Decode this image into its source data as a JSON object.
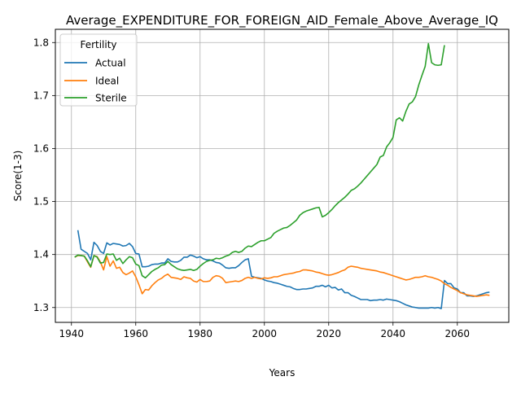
{
  "chart_data": {
    "type": "line",
    "title": "Average_EXPENDITURE_FOR_FOREIGN_AID_Female_Above_Average_IQ",
    "xlabel": "Years",
    "ylabel": "Score(1-3)",
    "xlim": [
      1935,
      2076
    ],
    "ylim": [
      1.272,
      1.825
    ],
    "x_ticks": [
      1940,
      1960,
      1980,
      2000,
      2020,
      2040,
      2060
    ],
    "y_ticks": [
      1.3,
      1.4,
      1.5,
      1.6,
      1.7,
      1.8
    ],
    "grid": true,
    "legend": {
      "title": "Fertility",
      "position": "upper-left"
    },
    "series": [
      {
        "name": "Actual",
        "color": "#1f77b4",
        "x": [
          1942,
          1943,
          1944,
          1945,
          1946,
          1947,
          1948,
          1949,
          1950,
          1951,
          1952,
          1953,
          1954,
          1955,
          1956,
          1957,
          1958,
          1959,
          1960,
          1961,
          1962,
          1963,
          1964,
          1965,
          1966,
          1967,
          1968,
          1969,
          1970,
          1971,
          1972,
          1973,
          1974,
          1975,
          1976,
          1977,
          1978,
          1979,
          1980,
          1981,
          1982,
          1983,
          1984,
          1985,
          1986,
          1987,
          1988,
          1989,
          1990,
          1991,
          1992,
          1993,
          1994,
          1995,
          1996,
          1997,
          1998,
          1999,
          2000,
          2001,
          2002,
          2003,
          2004,
          2005,
          2006,
          2007,
          2008,
          2009,
          2010,
          2011,
          2012,
          2013,
          2014,
          2015,
          2016,
          2017,
          2018,
          2019,
          2020,
          2021,
          2022,
          2023,
          2024,
          2025,
          2026,
          2027,
          2028,
          2029,
          2030,
          2031,
          2032,
          2033,
          2034,
          2035,
          2036,
          2037,
          2038,
          2039,
          2040,
          2041,
          2042,
          2043,
          2044,
          2045,
          2046,
          2047,
          2048,
          2049,
          2050,
          2051,
          2052,
          2053,
          2054,
          2055,
          2056,
          2057,
          2058,
          2059,
          2060,
          2061,
          2062,
          2063,
          2064,
          2065,
          2066,
          2067,
          2068,
          2069,
          2070
        ],
        "values": [
          1.446,
          1.41,
          1.406,
          1.402,
          1.39,
          1.423,
          1.417,
          1.406,
          1.402,
          1.422,
          1.418,
          1.421,
          1.42,
          1.419,
          1.416,
          1.417,
          1.421,
          1.415,
          1.402,
          1.401,
          1.377,
          1.377,
          1.378,
          1.381,
          1.382,
          1.382,
          1.384,
          1.384,
          1.392,
          1.387,
          1.386,
          1.386,
          1.389,
          1.395,
          1.395,
          1.399,
          1.397,
          1.394,
          1.396,
          1.392,
          1.39,
          1.39,
          1.388,
          1.385,
          1.384,
          1.38,
          1.375,
          1.374,
          1.375,
          1.375,
          1.379,
          1.385,
          1.39,
          1.392,
          1.359,
          1.357,
          1.356,
          1.355,
          1.352,
          1.35,
          1.349,
          1.347,
          1.346,
          1.344,
          1.342,
          1.34,
          1.339,
          1.336,
          1.334,
          1.334,
          1.335,
          1.335,
          1.336,
          1.337,
          1.34,
          1.34,
          1.342,
          1.339,
          1.342,
          1.337,
          1.338,
          1.333,
          1.335,
          1.328,
          1.328,
          1.323,
          1.321,
          1.318,
          1.315,
          1.315,
          1.315,
          1.313,
          1.314,
          1.314,
          1.315,
          1.314,
          1.316,
          1.315,
          1.314,
          1.313,
          1.311,
          1.308,
          1.305,
          1.303,
          1.301,
          1.3,
          1.299,
          1.299,
          1.299,
          1.299,
          1.3,
          1.299,
          1.3,
          1.298,
          1.351,
          1.345,
          1.345,
          1.337,
          1.335,
          1.328,
          1.328,
          1.322,
          1.322,
          1.321,
          1.322,
          1.324,
          1.326,
          1.328,
          1.329
        ]
      },
      {
        "name": "Ideal",
        "color": "#ff7f0e",
        "x": [
          1941,
          1942,
          1943,
          1944,
          1945,
          1946,
          1947,
          1948,
          1949,
          1950,
          1951,
          1952,
          1953,
          1954,
          1955,
          1956,
          1957,
          1958,
          1959,
          1960,
          1961,
          1962,
          1963,
          1964,
          1965,
          1966,
          1967,
          1968,
          1969,
          1970,
          1971,
          1972,
          1973,
          1974,
          1975,
          1976,
          1977,
          1978,
          1979,
          1980,
          1981,
          1982,
          1983,
          1984,
          1985,
          1986,
          1987,
          1988,
          1989,
          1990,
          1991,
          1992,
          1993,
          1994,
          1995,
          1996,
          1997,
          1998,
          1999,
          2000,
          2001,
          2002,
          2003,
          2004,
          2005,
          2006,
          2007,
          2008,
          2009,
          2010,
          2011,
          2012,
          2013,
          2014,
          2015,
          2016,
          2017,
          2018,
          2019,
          2020,
          2021,
          2022,
          2023,
          2024,
          2025,
          2026,
          2027,
          2028,
          2029,
          2030,
          2031,
          2032,
          2033,
          2034,
          2035,
          2036,
          2037,
          2038,
          2039,
          2040,
          2041,
          2042,
          2043,
          2044,
          2045,
          2046,
          2047,
          2048,
          2049,
          2050,
          2051,
          2052,
          2053,
          2054,
          2055,
          2056,
          2057,
          2058,
          2059,
          2060,
          2061,
          2062,
          2063,
          2064,
          2065,
          2066,
          2067,
          2068,
          2069,
          2070
        ],
        "values": [
          1.395,
          1.398,
          1.398,
          1.397,
          1.386,
          1.376,
          1.398,
          1.396,
          1.386,
          1.371,
          1.396,
          1.378,
          1.388,
          1.374,
          1.376,
          1.366,
          1.362,
          1.365,
          1.369,
          1.358,
          1.343,
          1.326,
          1.334,
          1.333,
          1.341,
          1.347,
          1.352,
          1.355,
          1.36,
          1.363,
          1.357,
          1.356,
          1.355,
          1.353,
          1.358,
          1.356,
          1.355,
          1.35,
          1.348,
          1.353,
          1.349,
          1.349,
          1.35,
          1.357,
          1.36,
          1.359,
          1.355,
          1.347,
          1.348,
          1.349,
          1.35,
          1.349,
          1.351,
          1.355,
          1.357,
          1.355,
          1.357,
          1.355,
          1.354,
          1.356,
          1.355,
          1.356,
          1.358,
          1.358,
          1.36,
          1.362,
          1.363,
          1.364,
          1.365,
          1.367,
          1.368,
          1.371,
          1.371,
          1.37,
          1.369,
          1.367,
          1.366,
          1.364,
          1.362,
          1.361,
          1.362,
          1.364,
          1.366,
          1.369,
          1.371,
          1.376,
          1.378,
          1.377,
          1.376,
          1.374,
          1.373,
          1.372,
          1.371,
          1.37,
          1.369,
          1.367,
          1.366,
          1.364,
          1.362,
          1.36,
          1.358,
          1.356,
          1.354,
          1.352,
          1.353,
          1.355,
          1.357,
          1.357,
          1.358,
          1.36,
          1.358,
          1.357,
          1.355,
          1.353,
          1.35,
          1.345,
          1.342,
          1.338,
          1.335,
          1.332,
          1.328,
          1.326,
          1.324,
          1.323,
          1.322,
          1.321,
          1.322,
          1.323,
          1.324,
          1.323
        ]
      },
      {
        "name": "Sterile",
        "color": "#2ca02c",
        "x": [
          1941,
          1942,
          1943,
          1944,
          1945,
          1946,
          1947,
          1948,
          1949,
          1950,
          1951,
          1952,
          1953,
          1954,
          1955,
          1956,
          1957,
          1958,
          1959,
          1960,
          1961,
          1962,
          1963,
          1964,
          1965,
          1966,
          1967,
          1968,
          1969,
          1970,
          1971,
          1972,
          1973,
          1974,
          1975,
          1976,
          1977,
          1978,
          1979,
          1980,
          1981,
          1982,
          1983,
          1984,
          1985,
          1986,
          1987,
          1988,
          1989,
          1990,
          1991,
          1992,
          1993,
          1994,
          1995,
          1996,
          1997,
          1998,
          1999,
          2000,
          2001,
          2002,
          2003,
          2004,
          2005,
          2006,
          2007,
          2008,
          2009,
          2010,
          2011,
          2012,
          2013,
          2014,
          2015,
          2016,
          2017,
          2018,
          2019,
          2020,
          2021,
          2022,
          2023,
          2024,
          2025,
          2026,
          2027,
          2028,
          2029,
          2030,
          2031,
          2032,
          2033,
          2034,
          2035,
          2036,
          2037,
          2038,
          2039,
          2040,
          2041,
          2042,
          2043,
          2044,
          2045,
          2046,
          2047,
          2048,
          2049,
          2050,
          2051,
          2052,
          2053,
          2054,
          2055,
          2056
        ],
        "values": [
          1.395,
          1.399,
          1.398,
          1.397,
          1.388,
          1.377,
          1.398,
          1.395,
          1.384,
          1.385,
          1.401,
          1.4,
          1.401,
          1.389,
          1.393,
          1.383,
          1.39,
          1.396,
          1.394,
          1.382,
          1.379,
          1.36,
          1.356,
          1.362,
          1.368,
          1.372,
          1.375,
          1.38,
          1.381,
          1.387,
          1.381,
          1.377,
          1.373,
          1.371,
          1.37,
          1.371,
          1.372,
          1.37,
          1.372,
          1.378,
          1.383,
          1.387,
          1.389,
          1.39,
          1.393,
          1.392,
          1.394,
          1.397,
          1.399,
          1.404,
          1.406,
          1.404,
          1.406,
          1.412,
          1.416,
          1.415,
          1.419,
          1.423,
          1.426,
          1.426,
          1.429,
          1.432,
          1.44,
          1.444,
          1.447,
          1.45,
          1.451,
          1.455,
          1.46,
          1.465,
          1.474,
          1.479,
          1.482,
          1.484,
          1.486,
          1.488,
          1.489,
          1.471,
          1.474,
          1.479,
          1.485,
          1.492,
          1.498,
          1.503,
          1.508,
          1.514,
          1.521,
          1.524,
          1.529,
          1.535,
          1.542,
          1.549,
          1.556,
          1.563,
          1.57,
          1.584,
          1.587,
          1.603,
          1.611,
          1.621,
          1.654,
          1.658,
          1.652,
          1.67,
          1.684,
          1.688,
          1.698,
          1.72,
          1.738,
          1.755,
          1.798,
          1.762,
          1.758,
          1.757,
          1.758,
          1.795
        ]
      }
    ]
  }
}
